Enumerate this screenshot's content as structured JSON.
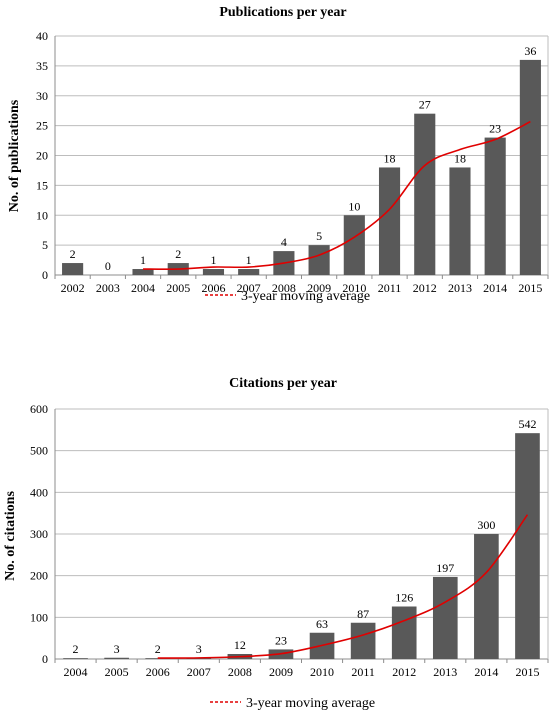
{
  "chart_data": [
    {
      "type": "bar",
      "title": "Publications per year",
      "xlabel": "",
      "ylabel": "No. of publications",
      "ylim": [
        0,
        40
      ],
      "yticks": [
        0,
        5,
        10,
        15,
        20,
        25,
        30,
        35,
        40
      ],
      "grid": true,
      "legend_position": "bottom",
      "categories": [
        "2002",
        "2003",
        "2004",
        "2005",
        "2006",
        "2007",
        "2008",
        "2009",
        "2010",
        "2011",
        "2012",
        "2013",
        "2014",
        "2015"
      ],
      "series": [
        {
          "type": "bar",
          "color": "#595959",
          "values": [
            2,
            0,
            1,
            2,
            1,
            1,
            4,
            5,
            10,
            18,
            27,
            18,
            23,
            36
          ]
        },
        {
          "name": "3-year moving average",
          "type": "line",
          "color": "#e00000",
          "values": [
            null,
            null,
            1,
            1,
            1.33,
            1.33,
            2,
            3.33,
            6.33,
            11,
            18.33,
            21,
            22.67,
            25.67
          ]
        }
      ]
    },
    {
      "type": "bar",
      "title": "Citations per year",
      "xlabel": "",
      "ylabel": "No. of citations",
      "ylim": [
        0,
        600
      ],
      "yticks": [
        0,
        100,
        200,
        300,
        400,
        500,
        600
      ],
      "grid": true,
      "legend_position": "bottom",
      "categories": [
        "2004",
        "2005",
        "2006",
        "2007",
        "2008",
        "2009",
        "2010",
        "2011",
        "2012",
        "2013",
        "2014",
        "2015"
      ],
      "series": [
        {
          "type": "bar",
          "color": "#595959",
          "values": [
            2,
            3,
            2,
            3,
            12,
            23,
            63,
            87,
            126,
            197,
            300,
            542
          ]
        },
        {
          "name": "3-year moving average",
          "type": "line",
          "color": "#e00000",
          "values": [
            null,
            null,
            2.33,
            2.67,
            5.67,
            12.67,
            32.67,
            57.67,
            92,
            136.67,
            207.67,
            346.33
          ]
        }
      ]
    }
  ]
}
